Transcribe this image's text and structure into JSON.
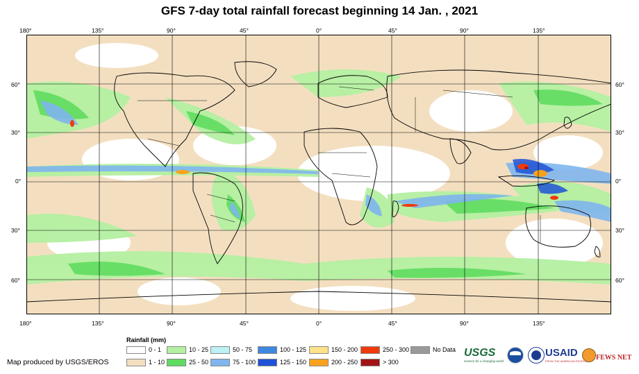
{
  "title": "GFS 7-day total rainfall forecast beginning 14 Jan. , 2021",
  "map": {
    "lon_ticks": [
      "180°",
      "135°",
      "90°",
      "45°",
      "0°",
      "45°",
      "90°",
      "135°"
    ],
    "lat_ticks": [
      "60°",
      "30°",
      "0°",
      "30°",
      "60°"
    ]
  },
  "legend": {
    "title": "Rainfall (mm)",
    "items": [
      {
        "label": "0 - 1",
        "color": "#ffffff"
      },
      {
        "label": "1 - 10",
        "color": "#f3dfc0"
      },
      {
        "label": "10 - 25",
        "color": "#b4f0a2"
      },
      {
        "label": "25 - 50",
        "color": "#5fdc5f"
      },
      {
        "label": "50 - 75",
        "color": "#bdf1f4"
      },
      {
        "label": "75 - 100",
        "color": "#7fb6ee"
      },
      {
        "label": "100 - 125",
        "color": "#3e88e0"
      },
      {
        "label": "125 - 150",
        "color": "#1f52d6"
      },
      {
        "label": "150 - 200",
        "color": "#fce38a"
      },
      {
        "label": "200 - 250",
        "color": "#f8a21c"
      },
      {
        "label": "250 - 300",
        "color": "#f03a0d"
      },
      {
        "label": "> 300",
        "color": "#a21414"
      },
      {
        "label": "No Data",
        "color": "#9a9a9a"
      }
    ]
  },
  "credit": "Map produced by USGS/EROS",
  "logos": {
    "usgs": "USGS",
    "usgs_tagline": "science for a changing world",
    "noaa": "NOAA",
    "usaid": "USAID",
    "usaid_tagline": "FROM THE AMERICAN PEOPLE",
    "fewsnet": "FEWS NET"
  }
}
